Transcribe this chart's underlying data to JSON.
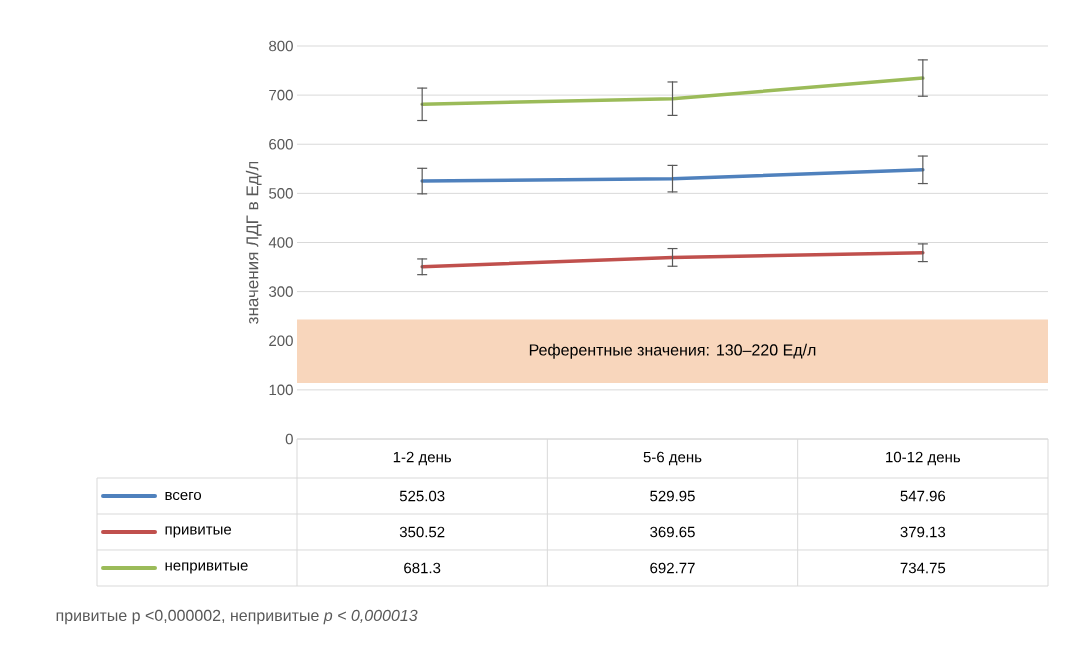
{
  "chart_data": {
    "type": "line",
    "ylabel": "значения ЛДГ в Ед/л",
    "categories": [
      "1-2 день",
      "5-6 день",
      "10-12 день"
    ],
    "series": [
      {
        "name": "всего",
        "color": "#4f81bd",
        "values": [
          525.03,
          529.95,
          547.96
        ],
        "errors": [
          26,
          27,
          28
        ]
      },
      {
        "name": "привитые",
        "color": "#c0504d",
        "values": [
          350.52,
          369.65,
          379.13
        ],
        "errors": [
          16,
          18,
          18
        ]
      },
      {
        "name": "непривитые",
        "color": "#9bbb59",
        "values": [
          681.3,
          692.77,
          734.75
        ],
        "errors": [
          33,
          34,
          37
        ]
      }
    ],
    "ylim": [
      0,
      800
    ],
    "yticks": [
      0,
      100,
      200,
      300,
      400,
      500,
      600,
      700,
      800
    ],
    "grid": "y",
    "legend": "bottom",
    "data_labels": true,
    "marker": "none",
    "line_style": "solid",
    "bands": [
      {
        "axis": "y",
        "from": 114,
        "to": 243,
        "label": "Референтные значения: 130–220  Ед/л",
        "color": "#f8d6bc"
      }
    ],
    "annotations": [
      "привитые p <0,000002, непривитые *p < 0,000013*"
    ]
  }
}
